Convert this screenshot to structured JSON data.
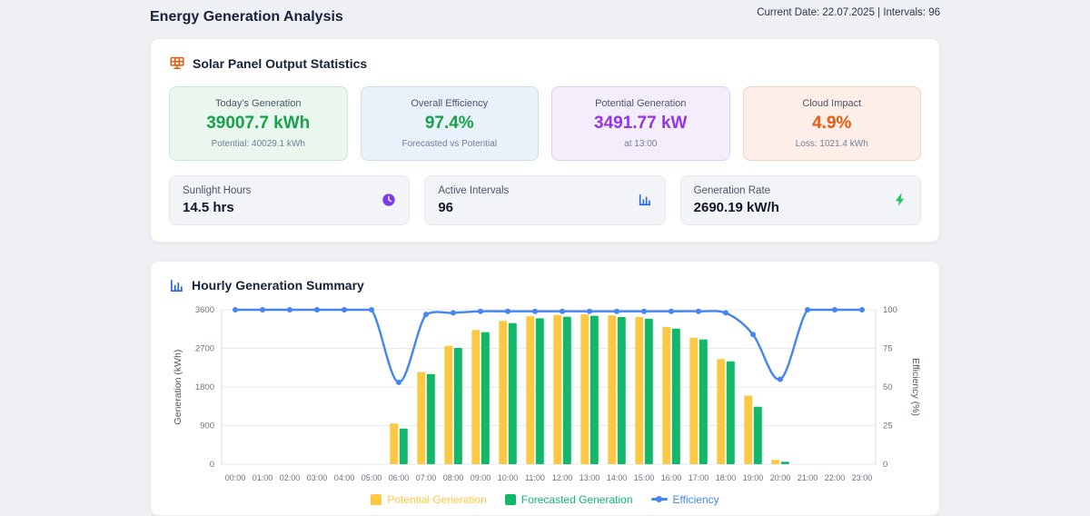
{
  "header": {
    "title": "Energy Generation Analysis",
    "meta": "Current Date: 22.07.2025 | Intervals: 96"
  },
  "stats_section": {
    "title": "Solar Panel Output Statistics",
    "cards": [
      {
        "label": "Today's Generation",
        "value": "39007.7 kWh",
        "sub": "Potential: 40029.1 kWh",
        "theme": "green",
        "value_color": "#16a34a"
      },
      {
        "label": "Overall Efficiency",
        "value": "97.4%",
        "sub": "Forecasted vs Potential",
        "theme": "blue",
        "value_color": "#16a34a"
      },
      {
        "label": "Potential Generation",
        "value": "3491.77 kW",
        "sub": "at 13:00",
        "theme": "purple",
        "value_color": "#9333ea"
      },
      {
        "label": "Cloud Impact",
        "value": "4.9%",
        "sub": "Loss: 1021.4 kWh",
        "theme": "orange",
        "value_color": "#ea580c"
      }
    ],
    "info_cards": [
      {
        "label": "Sunlight Hours",
        "value": "14.5 hrs",
        "icon": "clock-icon",
        "icon_color": "#7c3aed"
      },
      {
        "label": "Active Intervals",
        "value": "96",
        "icon": "bar-chart-icon",
        "icon_color": "#2563eb"
      },
      {
        "label": "Generation Rate",
        "value": "2690.19 kW/h",
        "icon": "lightning-icon",
        "icon_color": "#22c55e"
      }
    ]
  },
  "chart_section": {
    "title": "Hourly Generation Summary"
  },
  "chart_data": {
    "type": "bar+line",
    "categories": [
      "00:00",
      "01:00",
      "02:00",
      "03:00",
      "04:00",
      "05:00",
      "06:00",
      "07:00",
      "08:00",
      "09:00",
      "10:00",
      "11:00",
      "12:00",
      "13:00",
      "14:00",
      "15:00",
      "16:00",
      "17:00",
      "18:00",
      "19:00",
      "20:00",
      "21:00",
      "22:00",
      "23:00"
    ],
    "series": [
      {
        "name": "Potential Generation",
        "type": "bar",
        "color": "#fdc944",
        "axis": "left",
        "values": [
          0,
          0,
          0,
          0,
          0,
          0,
          950,
          2150,
          2760,
          3130,
          3340,
          3450,
          3480,
          3492,
          3470,
          3430,
          3200,
          2950,
          2450,
          1600,
          100,
          0,
          0,
          0
        ]
      },
      {
        "name": "Forecasted Generation",
        "type": "bar",
        "color": "#12b76a",
        "axis": "left",
        "values": [
          0,
          0,
          0,
          0,
          0,
          0,
          830,
          2100,
          2710,
          3080,
          3290,
          3400,
          3440,
          3460,
          3430,
          3390,
          3160,
          2910,
          2400,
          1340,
          60,
          0,
          0,
          0
        ]
      },
      {
        "name": "Efficiency",
        "type": "line",
        "color": "#4484f3",
        "axis": "right",
        "values": [
          100,
          100,
          100,
          100,
          100,
          100,
          53,
          97,
          98,
          99,
          99,
          99,
          99,
          99,
          99,
          99,
          99,
          99,
          98,
          84,
          55,
          100,
          100,
          100
        ]
      }
    ],
    "left_axis": {
      "label": "Generation (kWh)",
      "ticks": [
        0,
        900,
        1800,
        2700,
        3600
      ],
      "min": 0,
      "max": 3600
    },
    "right_axis": {
      "label": "Efficiency (%)",
      "ticks": [
        0,
        25,
        50,
        75,
        100
      ],
      "min": 0,
      "max": 100
    },
    "grid": true,
    "legend_position": "bottom"
  }
}
